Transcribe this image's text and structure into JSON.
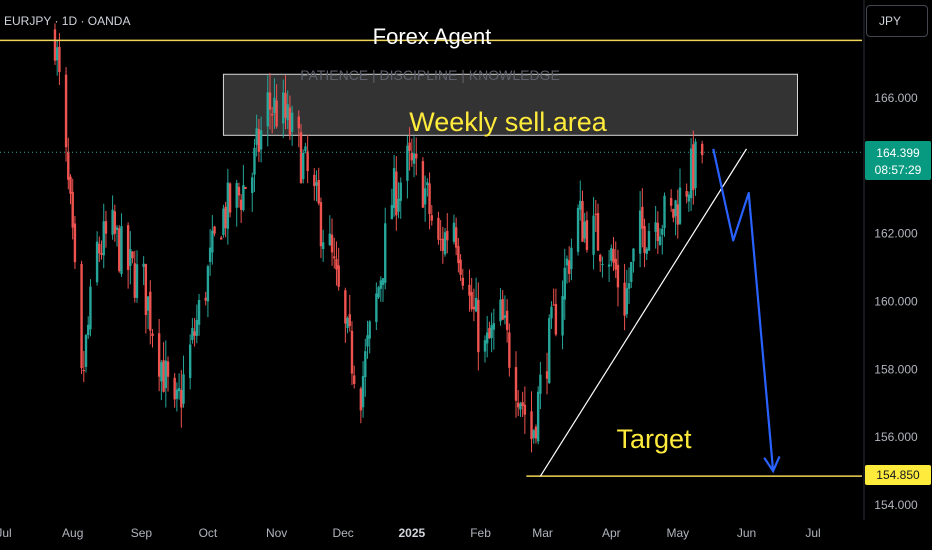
{
  "header": {
    "symbol": "EURJPY · 1D · OANDA",
    "currency": "JPY"
  },
  "annotations": {
    "title": "Forex Agent",
    "subtitle": "PATIENCE | DISCIPLINE | KNOWLEDGE",
    "zone_label": "Weekly sell.area",
    "target_label": "Target"
  },
  "price_badges": {
    "last": "164.399",
    "countdown": "08:57:29",
    "target": "154.850"
  },
  "colors": {
    "up": "#26a69a",
    "down": "#ef5350",
    "projection": "#2962ff",
    "annotation_text": "#ffeb3b",
    "level_line": "#f0d65a",
    "last_badge": "#089981",
    "target_badge": "#ffeb3b"
  },
  "chart_data": {
    "type": "candlestick",
    "y_tick_labels": [
      "166.000",
      "164.000",
      "162.000",
      "160.000",
      "158.000",
      "156.000",
      "154.000"
    ],
    "x_tick_labels": [
      "Jul",
      "Aug",
      "Sep",
      "Oct",
      "Nov",
      "Dec",
      "2025",
      "Feb",
      "Mar",
      "Apr",
      "May",
      "Jun",
      "Jul"
    ],
    "ylim": [
      153.8,
      168.0
    ],
    "last_price": 164.399,
    "resistance_level": 167.7,
    "target_level": 154.85,
    "sell_zone": {
      "from_date": "2024-10-08",
      "to_date": "2025-06-24",
      "low": 164.9,
      "high": 166.7
    },
    "trendline": [
      {
        "date": "2025-02-28",
        "price": 154.85
      },
      {
        "date": "2025-06-01",
        "price": 164.5
      }
    ],
    "projection_path": [
      {
        "date": "2025-05-17",
        "price": 164.5
      },
      {
        "date": "2025-05-26",
        "price": 161.8
      },
      {
        "date": "2025-06-02",
        "price": 163.2
      },
      {
        "date": "2025-06-13",
        "price": 155.0
      }
    ],
    "price_path": [
      [
        "2024-07-24",
        167.9
      ],
      [
        "2024-07-31",
        162.5
      ],
      [
        "2024-08-05",
        157.5
      ],
      [
        "2024-08-12",
        161.5
      ],
      [
        "2024-08-19",
        162.0
      ],
      [
        "2024-08-26",
        161.0
      ],
      [
        "2024-09-02",
        160.5
      ],
      [
        "2024-09-09",
        158.5
      ],
      [
        "2024-09-16",
        156.5
      ],
      [
        "2024-09-23",
        158.5
      ],
      [
        "2024-09-30",
        160.5
      ],
      [
        "2024-10-07",
        162.5
      ],
      [
        "2024-10-14",
        163.0
      ],
      [
        "2024-10-21",
        163.8
      ],
      [
        "2024-10-28",
        165.8
      ],
      [
        "2024-11-04",
        165.5
      ],
      [
        "2024-11-11",
        164.5
      ],
      [
        "2024-11-18",
        163.0
      ],
      [
        "2024-11-25",
        161.5
      ],
      [
        "2024-12-02",
        159.0
      ],
      [
        "2024-12-09",
        157.5
      ],
      [
        "2024-12-16",
        160.0
      ],
      [
        "2024-12-23",
        163.0
      ],
      [
        "2024-12-30",
        164.0
      ],
      [
        "2025-01-06",
        163.5
      ],
      [
        "2025-01-13",
        161.5
      ],
      [
        "2025-01-20",
        162.5
      ],
      [
        "2025-01-27",
        160.0
      ],
      [
        "2025-02-03",
        158.5
      ],
      [
        "2025-02-10",
        159.5
      ],
      [
        "2025-02-17",
        157.8
      ],
      [
        "2025-02-24",
        156.0
      ],
      [
        "2025-03-03",
        158.5
      ],
      [
        "2025-03-10",
        160.5
      ],
      [
        "2025-03-17",
        162.5
      ],
      [
        "2025-03-24",
        162.0
      ],
      [
        "2025-03-31",
        161.5
      ],
      [
        "2025-04-07",
        160.0
      ],
      [
        "2025-04-14",
        162.0
      ],
      [
        "2025-04-21",
        162.5
      ],
      [
        "2025-04-28",
        162.5
      ],
      [
        "2025-05-05",
        163.5
      ],
      [
        "2025-05-12",
        164.4
      ]
    ]
  }
}
